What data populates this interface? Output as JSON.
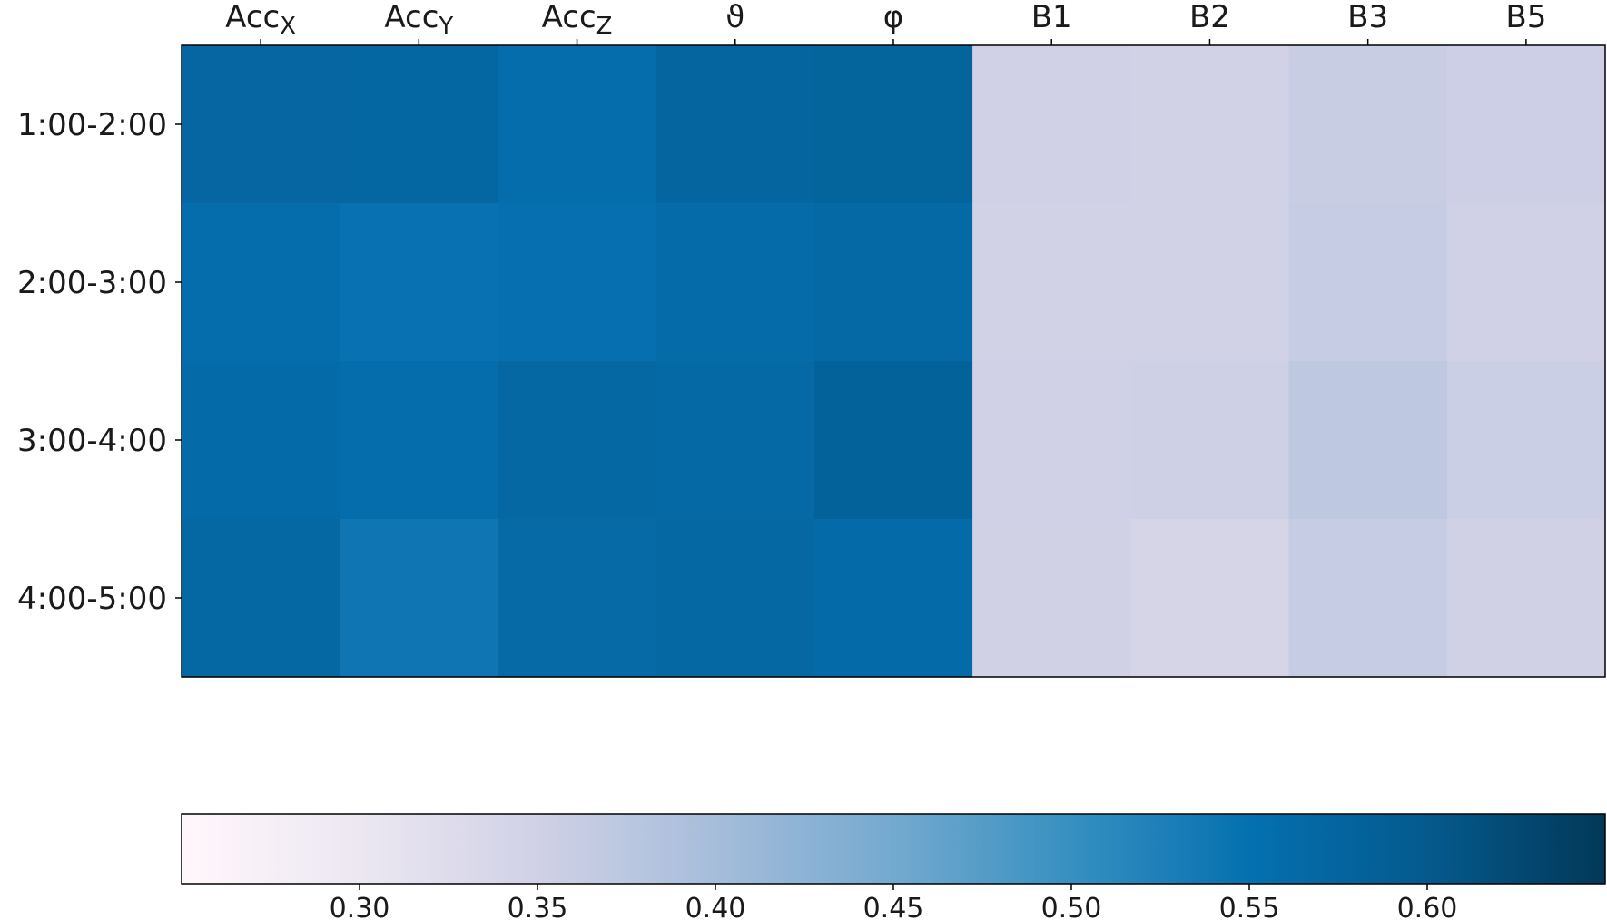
{
  "chart_data": {
    "type": "heatmap",
    "columns": [
      {
        "base": "Acc",
        "sub": "X"
      },
      {
        "base": "Acc",
        "sub": "Y"
      },
      {
        "base": "Acc",
        "sub": "Z"
      },
      {
        "base": "ϑ",
        "sub": ""
      },
      {
        "base": "φ",
        "sub": ""
      },
      {
        "base": "B1",
        "sub": ""
      },
      {
        "base": "B2",
        "sub": ""
      },
      {
        "base": "B3",
        "sub": ""
      },
      {
        "base": "B5",
        "sub": ""
      }
    ],
    "rows": [
      "1:00-2:00",
      "2:00-3:00",
      "3:00-4:00",
      "4:00-5:00"
    ],
    "values": [
      [
        0.572,
        0.57,
        0.556,
        0.575,
        0.578,
        0.35,
        0.347,
        0.36,
        0.355
      ],
      [
        0.556,
        0.548,
        0.552,
        0.56,
        0.566,
        0.348,
        0.348,
        0.362,
        0.35
      ],
      [
        0.562,
        0.557,
        0.568,
        0.566,
        0.582,
        0.35,
        0.352,
        0.372,
        0.356
      ],
      [
        0.568,
        0.54,
        0.564,
        0.568,
        0.562,
        0.349,
        0.34,
        0.363,
        0.349
      ]
    ],
    "colorbar": {
      "orientation": "horizontal",
      "range": [
        0.25,
        0.65
      ],
      "ticks": [
        "0.30",
        "0.35",
        "0.40",
        "0.45",
        "0.50",
        "0.55",
        "0.60"
      ],
      "colormap": "PuBu"
    }
  }
}
